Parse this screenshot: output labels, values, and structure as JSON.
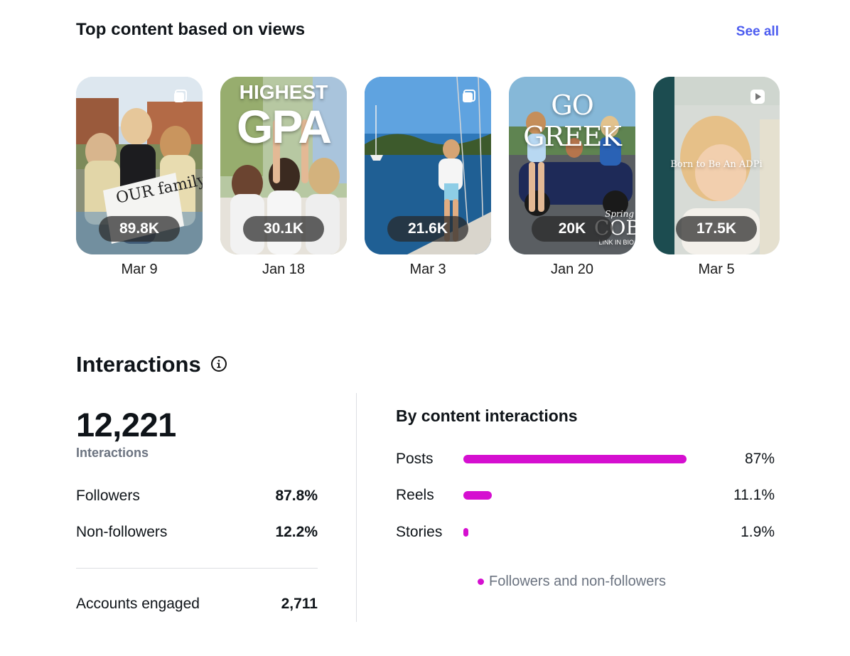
{
  "top_content": {
    "title": "Top content based on views",
    "see_all_label": "See all",
    "items": [
      {
        "views": "89.8K",
        "date": "Mar 9",
        "type_icon": "carousel-icon",
        "sign_text": "OUR family GRU!!!"
      },
      {
        "views": "30.1K",
        "date": "Jan 18",
        "type_icon": "none",
        "overlay_line1": "HIGHEST",
        "overlay_line2": "GPA"
      },
      {
        "views": "21.6K",
        "date": "Mar 3",
        "type_icon": "carousel-icon"
      },
      {
        "views": "20K",
        "date": "Jan 20",
        "type_icon": "none",
        "overlay_line1": "GO GREEK",
        "overlay_line2": "Spring",
        "overlay_line3": "COB",
        "overlay_line4": "LINK IN BIO"
      },
      {
        "views": "17.5K",
        "date": "Mar 5",
        "type_icon": "reel-icon",
        "overlay_line1": "Born to Be An ADPi"
      }
    ]
  },
  "interactions": {
    "title": "Interactions",
    "total": "12,221",
    "total_label": "Interactions",
    "followers_label": "Followers",
    "followers_value": "87.8%",
    "non_followers_label": "Non-followers",
    "non_followers_value": "12.2%",
    "accounts_engaged_label": "Accounts engaged",
    "accounts_engaged_value": "2,711"
  },
  "by_content": {
    "title": "By content interactions",
    "accent_color": "#d50fd0",
    "rows": [
      {
        "label": "Posts",
        "value": "87%",
        "fraction": 0.87
      },
      {
        "label": "Reels",
        "value": "11.1%",
        "fraction": 0.111
      },
      {
        "label": "Stories",
        "value": "1.9%",
        "fraction": 0.019
      }
    ],
    "legend_label": "Followers and non-followers"
  }
}
